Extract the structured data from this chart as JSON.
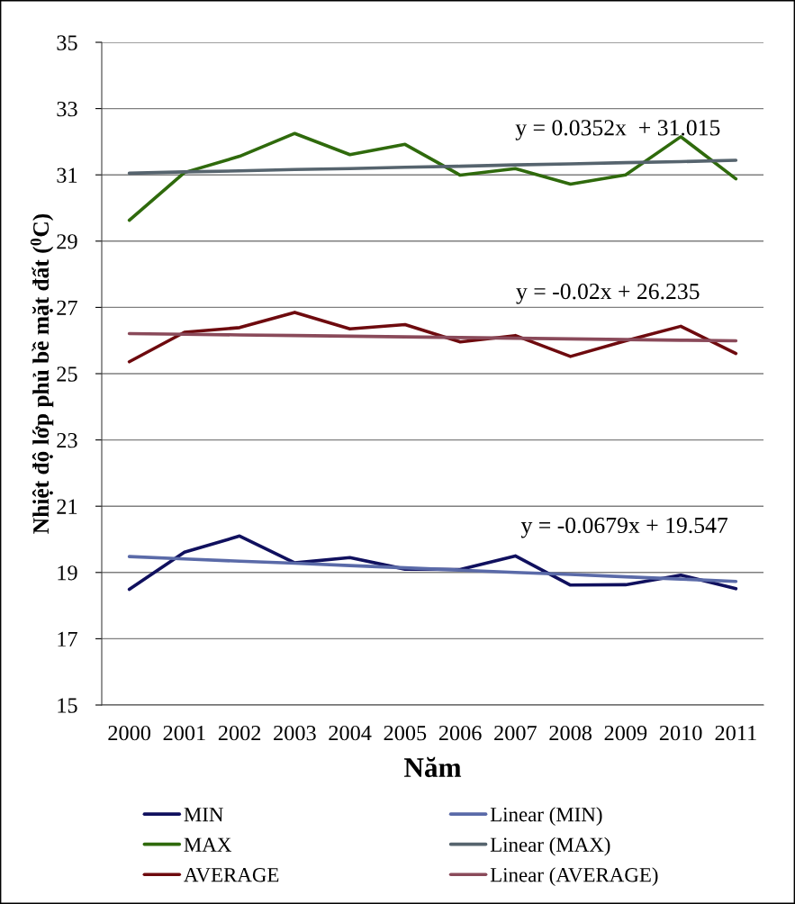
{
  "chart_data": {
    "type": "line",
    "categories": [
      "2000",
      "2001",
      "2002",
      "2003",
      "2004",
      "2005",
      "2006",
      "2007",
      "2008",
      "2009",
      "2010",
      "2011"
    ],
    "xlabel": "Năm",
    "ylabel": "Nhiệt độ lớp phủ bề mặt đất ($^{0}$C)",
    "ylim": [
      15,
      35
    ],
    "yticks": [
      15,
      17,
      19,
      21,
      23,
      25,
      27,
      29,
      31,
      33,
      35
    ],
    "grid": "y",
    "legend": "bottom",
    "marker": "none",
    "line_style": "solid",
    "series": [
      {
        "name": "MIN",
        "color": "#10105e",
        "values": [
          18.49,
          19.61,
          20.1,
          19.29,
          19.45,
          19.1,
          19.09,
          19.5,
          18.62,
          18.63,
          18.92,
          18.51
        ]
      },
      {
        "name": "MAX",
        "color": "#2f6a0c",
        "values": [
          29.63,
          31.07,
          31.56,
          32.25,
          31.61,
          31.92,
          30.99,
          31.19,
          30.72,
          31.0,
          32.15,
          30.88
        ]
      },
      {
        "name": "AVERAGE",
        "color": "#6e0a0e",
        "values": [
          25.36,
          26.25,
          26.39,
          26.85,
          26.35,
          26.48,
          25.96,
          26.15,
          25.52,
          25.99,
          26.43,
          25.61
        ]
      },
      {
        "name": "Linear (MIN)",
        "color": "#5a6aa8",
        "values": [
          19.48,
          19.41,
          19.34,
          19.28,
          19.21,
          19.14,
          19.07,
          19.0,
          18.94,
          18.87,
          18.8,
          18.73
        ]
      },
      {
        "name": "Linear (MAX)",
        "color": "#56646e",
        "values": [
          31.05,
          31.09,
          31.12,
          31.16,
          31.19,
          31.23,
          31.26,
          31.3,
          31.33,
          31.37,
          31.4,
          31.44
        ]
      },
      {
        "name": "Linear (AVERAGE)",
        "color": "#8a4a5a",
        "values": [
          26.21,
          26.19,
          26.17,
          26.15,
          26.13,
          26.11,
          26.09,
          26.07,
          26.05,
          26.03,
          26.01,
          25.99
        ]
      }
    ],
    "annotations": [
      "y = 0.0352x  + 31.015",
      "y = -0.02x + 26.235",
      "y = -0.0679x + 19.547"
    ]
  }
}
